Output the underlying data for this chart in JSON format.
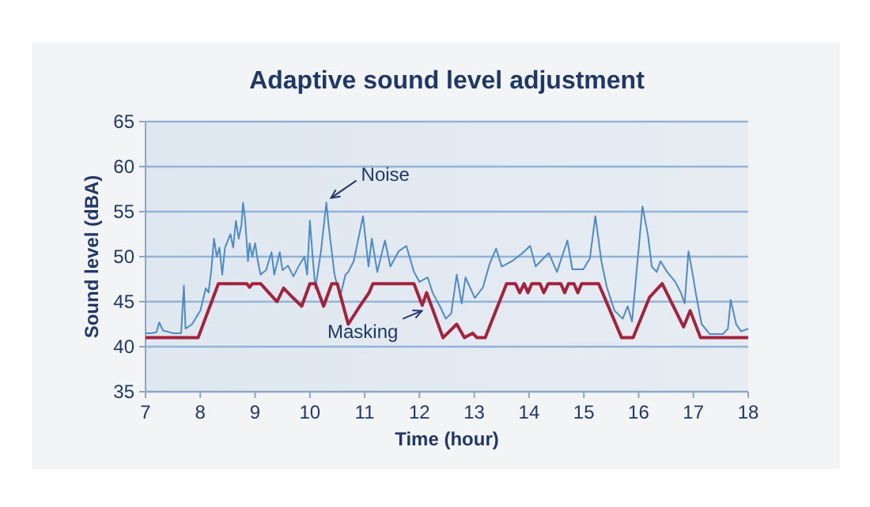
{
  "chart_data": {
    "type": "line",
    "title": "Adaptive sound level adjustment",
    "xlabel": "Time (hour)",
    "ylabel": "Sound level (dBA)",
    "xlim": [
      7,
      18
    ],
    "xticks": [
      7,
      8,
      9,
      10,
      11,
      12,
      13,
      14,
      15,
      16,
      17,
      18
    ],
    "ylim": [
      35,
      65
    ],
    "yticks": [
      35,
      40,
      45,
      50,
      55,
      60,
      65
    ],
    "grid": "y",
    "legend": false,
    "marker": "none",
    "line_style": "solid",
    "series": [
      {
        "name": "Noise",
        "color": "#4f8ac6",
        "x": [
          7.0,
          7.1,
          7.2,
          7.25,
          7.32,
          7.5,
          7.65,
          7.7,
          7.73,
          7.85,
          7.95,
          8.0,
          8.1,
          8.15,
          8.2,
          8.25,
          8.3,
          8.35,
          8.4,
          8.45,
          8.55,
          8.6,
          8.65,
          8.7,
          8.75,
          8.78,
          8.82,
          8.87,
          8.9,
          8.95,
          9.0,
          9.05,
          9.1,
          9.2,
          9.3,
          9.35,
          9.45,
          9.5,
          9.6,
          9.7,
          9.8,
          9.9,
          9.95,
          10.0,
          10.05,
          10.1,
          10.2,
          10.3,
          10.35,
          10.45,
          10.55,
          10.65,
          10.7,
          10.8,
          10.97,
          11.07,
          11.13,
          11.23,
          11.37,
          11.47,
          11.62,
          11.76,
          11.9,
          12.0,
          12.15,
          12.24,
          12.39,
          12.48,
          12.58,
          12.68,
          12.77,
          12.84,
          13.01,
          13.16,
          13.28,
          13.4,
          13.5,
          13.69,
          13.88,
          14.02,
          14.12,
          14.26,
          14.36,
          14.51,
          14.7,
          14.79,
          14.99,
          15.11,
          15.21,
          15.32,
          15.42,
          15.56,
          15.71,
          15.8,
          15.88,
          15.98,
          16.07,
          16.17,
          16.24,
          16.33,
          16.4,
          16.52,
          16.67,
          16.77,
          16.84,
          16.91,
          16.98,
          17.05,
          17.15,
          17.3,
          17.54,
          17.63,
          17.68,
          17.78,
          17.87,
          18.0
        ],
        "values": [
          41.5,
          41.5,
          41.6,
          42.7,
          41.8,
          41.5,
          41.5,
          46.8,
          42,
          42.5,
          43.5,
          44,
          46.5,
          46,
          48.5,
          52,
          50,
          51,
          48,
          51,
          52.5,
          51,
          54,
          52,
          53.5,
          56,
          54,
          49.5,
          51.5,
          50,
          51.5,
          49.5,
          48,
          48.5,
          50.5,
          48,
          50.5,
          48.5,
          49,
          47.8,
          49,
          50,
          48,
          54,
          50,
          46.5,
          50.5,
          56,
          53,
          48,
          45.5,
          48,
          48.3,
          49.5,
          54.5,
          48.9,
          52,
          48.3,
          51.8,
          48.9,
          50.6,
          51.2,
          48.3,
          47.2,
          47.7,
          46,
          44.3,
          43.1,
          43.7,
          48,
          44.8,
          47.7,
          45.4,
          46.6,
          49.2,
          50.9,
          48.9,
          49.5,
          50.4,
          51.2,
          48.9,
          49.8,
          50.4,
          48.3,
          51.8,
          48.6,
          48.6,
          49.8,
          54.5,
          49.5,
          46.6,
          44,
          43.1,
          44.5,
          42.8,
          49.5,
          55.6,
          52.4,
          48.9,
          48.3,
          49.5,
          48.3,
          47.2,
          46,
          44.8,
          50.6,
          48.3,
          45.7,
          42.5,
          41.4,
          41.4,
          42,
          45.2,
          42.5,
          41.7,
          42
        ]
      },
      {
        "name": "Masking",
        "color": "#a3233c",
        "x": [
          7.0,
          7.96,
          8.33,
          8.85,
          8.9,
          8.95,
          9.1,
          9.25,
          9.4,
          9.52,
          9.68,
          9.85,
          10.0,
          10.1,
          10.25,
          10.4,
          10.5,
          10.7,
          10.89,
          11.08,
          11.15,
          11.42,
          11.9,
          12.05,
          12.13,
          12.43,
          12.68,
          12.82,
          12.97,
          13.05,
          13.2,
          13.59,
          13.75,
          13.83,
          13.91,
          13.98,
          14.05,
          14.2,
          14.27,
          14.35,
          14.58,
          14.65,
          14.72,
          14.82,
          14.89,
          14.96,
          15.27,
          15.69,
          15.9,
          16.2,
          16.43,
          16.82,
          16.94,
          17.13,
          18.0
        ],
        "values": [
          41,
          41,
          47,
          47,
          46.6,
          47,
          47,
          46,
          45,
          46.5,
          45.5,
          44.5,
          47,
          47,
          44.5,
          47,
          47,
          42.5,
          44.3,
          46,
          47,
          47,
          47,
          44.6,
          46,
          41,
          42.5,
          41,
          41.5,
          41,
          41,
          47,
          47,
          46,
          47,
          46,
          47,
          47,
          46,
          47,
          47,
          46,
          47,
          47,
          46,
          47,
          47,
          41,
          41,
          45.5,
          47,
          42.2,
          44,
          41,
          41
        ]
      }
    ]
  }
}
